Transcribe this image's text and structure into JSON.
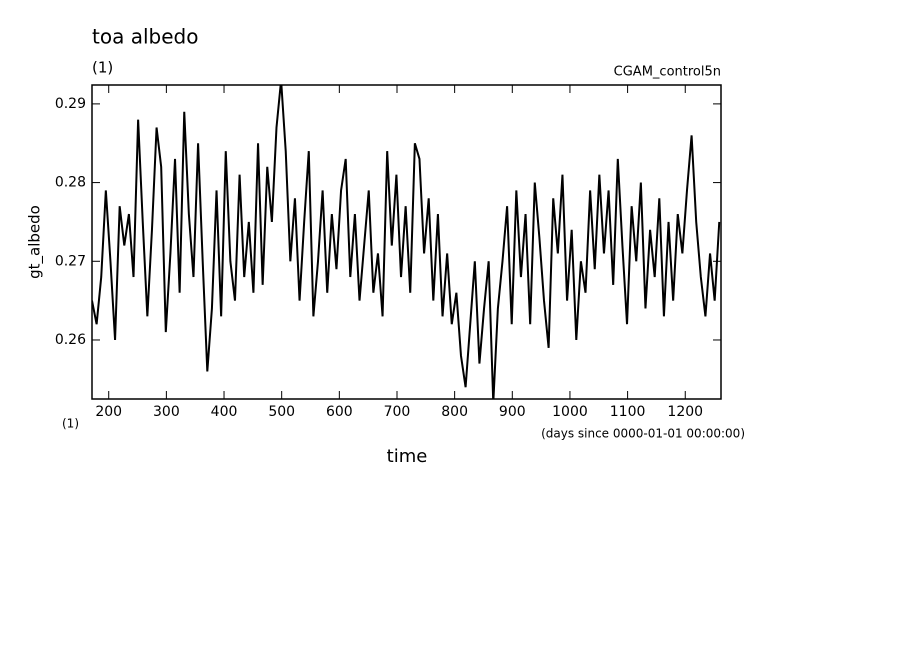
{
  "chart_data": {
    "type": "line",
    "title": "toa albedo",
    "subtitle": "(1)",
    "annotations": {
      "dataset": "CGAM_control5n",
      "x_units": "(days since 0000-01-01 00:00:00)",
      "y_units": "(1)"
    },
    "xlabel": "time",
    "ylabel": "gt_albedo",
    "color": "#000000",
    "xlim": [
      171,
      1262
    ],
    "ylim": [
      0.2525,
      0.2924
    ],
    "xticks": [
      200,
      300,
      400,
      500,
      600,
      700,
      800,
      900,
      1000,
      1100,
      1200
    ],
    "yticks": [
      0.26,
      0.27,
      0.28,
      0.29
    ],
    "x": [
      171,
      179,
      187,
      195,
      203,
      211,
      219,
      227,
      235,
      243,
      251,
      259,
      267,
      275,
      283,
      291,
      299,
      307,
      315,
      323,
      331,
      339,
      347,
      355,
      363,
      371,
      379,
      387,
      395,
      403,
      411,
      419,
      427,
      435,
      443,
      451,
      459,
      467,
      475,
      483,
      491,
      499,
      507,
      515,
      523,
      531,
      539,
      547,
      555,
      563,
      571,
      579,
      587,
      595,
      603,
      611,
      619,
      627,
      635,
      643,
      651,
      659,
      667,
      675,
      683,
      691,
      699,
      707,
      715,
      723,
      731,
      739,
      747,
      755,
      763,
      771,
      779,
      787,
      795,
      803,
      811,
      819,
      827,
      835,
      843,
      851,
      859,
      867,
      875,
      883,
      891,
      899,
      907,
      915,
      923,
      931,
      939,
      947,
      955,
      963,
      971,
      979,
      987,
      995,
      1003,
      1011,
      1019,
      1027,
      1035,
      1043,
      1051,
      1059,
      1067,
      1075,
      1083,
      1091,
      1099,
      1107,
      1115,
      1123,
      1131,
      1139,
      1147,
      1155,
      1163,
      1171,
      1179,
      1187,
      1195,
      1203,
      1211,
      1219,
      1227,
      1235,
      1243,
      1251,
      1259
    ],
    "values": [
      0.265,
      0.262,
      0.268,
      0.279,
      0.27,
      0.26,
      0.277,
      0.272,
      0.276,
      0.268,
      0.288,
      0.275,
      0.263,
      0.274,
      0.287,
      0.282,
      0.261,
      0.271,
      0.283,
      0.266,
      0.289,
      0.276,
      0.268,
      0.285,
      0.27,
      0.256,
      0.264,
      0.279,
      0.263,
      0.284,
      0.27,
      0.265,
      0.281,
      0.268,
      0.275,
      0.266,
      0.285,
      0.267,
      0.282,
      0.275,
      0.287,
      0.293,
      0.284,
      0.27,
      0.278,
      0.265,
      0.275,
      0.284,
      0.263,
      0.27,
      0.279,
      0.266,
      0.276,
      0.269,
      0.279,
      0.283,
      0.268,
      0.276,
      0.265,
      0.272,
      0.279,
      0.266,
      0.271,
      0.263,
      0.284,
      0.272,
      0.281,
      0.268,
      0.277,
      0.266,
      0.285,
      0.283,
      0.271,
      0.278,
      0.265,
      0.276,
      0.263,
      0.271,
      0.262,
      0.266,
      0.258,
      0.254,
      0.262,
      0.27,
      0.257,
      0.264,
      0.27,
      0.252,
      0.264,
      0.27,
      0.277,
      0.262,
      0.279,
      0.268,
      0.276,
      0.262,
      0.28,
      0.273,
      0.265,
      0.259,
      0.278,
      0.271,
      0.281,
      0.265,
      0.274,
      0.26,
      0.27,
      0.266,
      0.279,
      0.269,
      0.281,
      0.271,
      0.279,
      0.267,
      0.283,
      0.272,
      0.262,
      0.277,
      0.27,
      0.28,
      0.264,
      0.274,
      0.268,
      0.278,
      0.263,
      0.275,
      0.265,
      0.276,
      0.271,
      0.279,
      0.286,
      0.275,
      0.268,
      0.263,
      0.271,
      0.265,
      0.275
    ]
  }
}
